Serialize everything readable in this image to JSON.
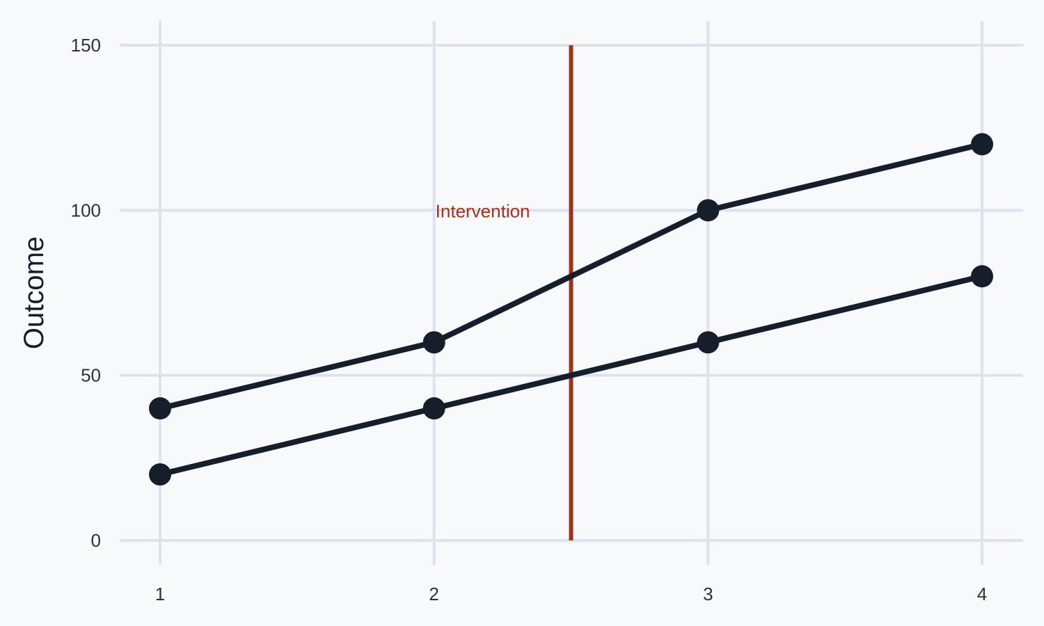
{
  "chart_data": {
    "type": "line",
    "title": "",
    "xlabel": "",
    "ylabel": "Outcome",
    "x": [
      1,
      2,
      3,
      4
    ],
    "xticks": [
      "1",
      "2",
      "3",
      "4"
    ],
    "yticks": [
      "0",
      "50",
      "100",
      "150"
    ],
    "xlim": [
      0.85,
      4.15
    ],
    "ylim": [
      0,
      150
    ],
    "grid": true,
    "series": [
      {
        "values": [
          40,
          60,
          100,
          120
        ]
      },
      {
        "values": [
          20,
          40,
          60,
          80
        ]
      }
    ],
    "vline": {
      "x": 2.5,
      "ymin": 0,
      "ymax": 150
    },
    "annotation": {
      "text": "Intervention",
      "x": 2.0,
      "y": 100
    },
    "colors": {
      "background": "#f7f9fb",
      "grid": "#dde3ec",
      "series": "#161d2b",
      "intervention": "#a23220"
    }
  }
}
